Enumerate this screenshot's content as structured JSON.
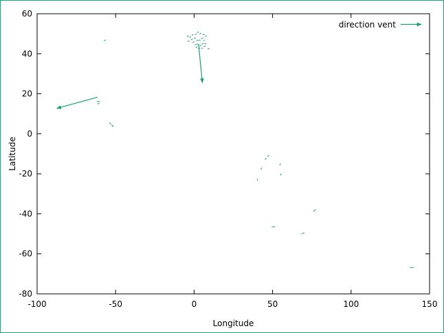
{
  "chart_data": {
    "type": "vector-field",
    "title": "",
    "xlabel": "Longitude",
    "ylabel": "Latitude",
    "xlim": [
      -100,
      150
    ],
    "ylim": [
      -80,
      60
    ],
    "xticks": [
      -100,
      -50,
      0,
      50,
      100,
      150
    ],
    "yticks": [
      -80,
      -60,
      -40,
      -20,
      0,
      20,
      40,
      60
    ],
    "xtick_labels": [
      "-100",
      "-50",
      "0",
      "50",
      "100",
      "150"
    ],
    "ytick_labels": [
      "-80",
      "-60",
      "-40",
      "-20",
      "0",
      "20",
      "40",
      "60"
    ],
    "grid": false,
    "legend": {
      "position": "top-right",
      "label": "direction vent"
    },
    "color": "#1a9e77",
    "series": [
      {
        "name": "direction vent",
        "vectors": [
          {
            "x": -61.5,
            "y": 18.3,
            "dx": -26.0,
            "dy": -5.6
          },
          {
            "x": 2.8,
            "y": 44.9,
            "dx": 2.5,
            "dy": -19.4
          },
          {
            "x": -57.5,
            "y": 46.5,
            "dx": 1.2,
            "dy": 0.4
          },
          {
            "x": -62.0,
            "y": 16.2,
            "dx": 2.0,
            "dy": 0.0
          },
          {
            "x": -61.5,
            "y": 14.8,
            "dx": 1.2,
            "dy": 0.6
          },
          {
            "x": -54.0,
            "y": 5.5,
            "dx": 1.0,
            "dy": -0.6
          },
          {
            "x": -52.8,
            "y": 4.5,
            "dx": 1.0,
            "dy": -0.6
          },
          {
            "x": -52.0,
            "y": 3.6,
            "dx": 0.8,
            "dy": 0.5
          },
          {
            "x": -4.5,
            "y": 48.5,
            "dx": 1.2,
            "dy": 0.4
          },
          {
            "x": -3.0,
            "y": 48.0,
            "dx": 1.0,
            "dy": 0.6
          },
          {
            "x": -1.5,
            "y": 49.2,
            "dx": 1.0,
            "dy": 0.5
          },
          {
            "x": 0.5,
            "y": 49.5,
            "dx": 1.2,
            "dy": 0.4
          },
          {
            "x": 2.0,
            "y": 50.5,
            "dx": 1.0,
            "dy": 0.5
          },
          {
            "x": 3.5,
            "y": 49.8,
            "dx": 1.0,
            "dy": 0.6
          },
          {
            "x": 5.5,
            "y": 49.5,
            "dx": 1.2,
            "dy": 0.3
          },
          {
            "x": 7.0,
            "y": 48.5,
            "dx": 1.0,
            "dy": 0.5
          },
          {
            "x": -4.0,
            "y": 46.5,
            "dx": 1.0,
            "dy": -0.5
          },
          {
            "x": -2.0,
            "y": 47.0,
            "dx": 1.2,
            "dy": 0.4
          },
          {
            "x": 0.0,
            "y": 47.5,
            "dx": 1.0,
            "dy": 0.6
          },
          {
            "x": 1.5,
            "y": 46.5,
            "dx": 1.2,
            "dy": 0.3
          },
          {
            "x": 3.0,
            "y": 47.0,
            "dx": 1.0,
            "dy": -0.5
          },
          {
            "x": 4.5,
            "y": 47.5,
            "dx": 1.2,
            "dy": 0.4
          },
          {
            "x": 6.0,
            "y": 46.5,
            "dx": 1.0,
            "dy": 0.5
          },
          {
            "x": -1.0,
            "y": 45.5,
            "dx": 1.0,
            "dy": 0.6
          },
          {
            "x": 0.5,
            "y": 44.5,
            "dx": 1.2,
            "dy": 0.4
          },
          {
            "x": 2.0,
            "y": 45.0,
            "dx": 1.0,
            "dy": -0.6
          },
          {
            "x": 3.5,
            "y": 44.0,
            "dx": 1.2,
            "dy": 0.4
          },
          {
            "x": 5.0,
            "y": 44.8,
            "dx": 1.0,
            "dy": 0.5
          },
          {
            "x": 6.5,
            "y": 45.2,
            "dx": 1.2,
            "dy": -0.4
          },
          {
            "x": 1.0,
            "y": 43.0,
            "dx": 1.0,
            "dy": 0.5
          },
          {
            "x": 2.5,
            "y": 42.5,
            "dx": 1.2,
            "dy": 0.4
          },
          {
            "x": 4.5,
            "y": 43.0,
            "dx": 1.0,
            "dy": -0.5
          },
          {
            "x": 6.0,
            "y": 43.5,
            "dx": 1.2,
            "dy": 0.4
          },
          {
            "x": 8.5,
            "y": 42.5,
            "dx": 1.5,
            "dy": 0.0
          },
          {
            "x": 45.0,
            "y": -12.8,
            "dx": 1.2,
            "dy": 0.6
          },
          {
            "x": 46.8,
            "y": -11.5,
            "dx": 1.0,
            "dy": 0.8
          },
          {
            "x": 42.5,
            "y": -17.8,
            "dx": 0.6,
            "dy": 0.9
          },
          {
            "x": 54.5,
            "y": -15.8,
            "dx": 0.6,
            "dy": 0.9
          },
          {
            "x": 55.0,
            "y": -20.8,
            "dx": 0.5,
            "dy": 0.9
          },
          {
            "x": 40.2,
            "y": -22.5,
            "dx": 0.3,
            "dy": -1.0
          },
          {
            "x": 76.0,
            "y": -38.8,
            "dx": 1.5,
            "dy": 0.9
          },
          {
            "x": 49.5,
            "y": -46.5,
            "dx": 2.2,
            "dy": 0.1
          },
          {
            "x": 68.5,
            "y": -50.0,
            "dx": 1.8,
            "dy": 0.6
          },
          {
            "x": 137.5,
            "y": -66.8,
            "dx": 2.5,
            "dy": 0.0
          }
        ]
      }
    ]
  }
}
